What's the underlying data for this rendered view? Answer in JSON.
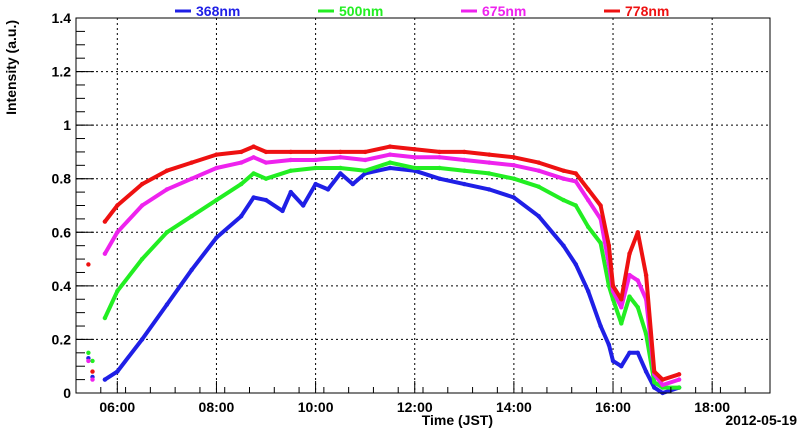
{
  "chart_data": {
    "type": "scatter",
    "title": "",
    "xlabel": "Time (JST)",
    "ylabel": "Intensity (a.u.)",
    "date_label": "2012-05-19",
    "xlim": [
      "05:10",
      "19:10"
    ],
    "ylim": [
      0,
      1.4
    ],
    "x_ticks": [
      "06:00",
      "08:00",
      "10:00",
      "12:00",
      "14:00",
      "16:00",
      "18:00"
    ],
    "y_ticks": [
      "0",
      "0.2",
      "0.4",
      "0.6",
      "0.8",
      "1",
      "1.2",
      "1.4"
    ],
    "grid": true,
    "legend_position": "top",
    "series": [
      {
        "name": "368nm",
        "color": "#1f1fe6",
        "points": [
          [
            "05:25",
            0.13
          ],
          [
            "05:30",
            0.06
          ],
          [
            "05:45",
            0.05
          ],
          [
            "06:00",
            0.08
          ],
          [
            "06:30",
            0.2
          ],
          [
            "07:00",
            0.33
          ],
          [
            "07:30",
            0.46
          ],
          [
            "08:00",
            0.58
          ],
          [
            "08:30",
            0.66
          ],
          [
            "08:45",
            0.73
          ],
          [
            "09:00",
            0.72
          ],
          [
            "09:20",
            0.68
          ],
          [
            "09:30",
            0.75
          ],
          [
            "09:45",
            0.7
          ],
          [
            "10:00",
            0.78
          ],
          [
            "10:15",
            0.76
          ],
          [
            "10:30",
            0.82
          ],
          [
            "10:45",
            0.78
          ],
          [
            "11:00",
            0.82
          ],
          [
            "11:30",
            0.84
          ],
          [
            "12:00",
            0.83
          ],
          [
            "12:30",
            0.8
          ],
          [
            "13:00",
            0.78
          ],
          [
            "13:30",
            0.76
          ],
          [
            "14:00",
            0.73
          ],
          [
            "14:30",
            0.66
          ],
          [
            "15:00",
            0.55
          ],
          [
            "15:15",
            0.48
          ],
          [
            "15:30",
            0.38
          ],
          [
            "15:45",
            0.25
          ],
          [
            "15:55",
            0.18
          ],
          [
            "16:00",
            0.12
          ],
          [
            "16:10",
            0.1
          ],
          [
            "16:20",
            0.15
          ],
          [
            "16:30",
            0.15
          ],
          [
            "16:40",
            0.08
          ],
          [
            "16:50",
            0.02
          ],
          [
            "17:00",
            0.0
          ],
          [
            "17:20",
            0.02
          ]
        ]
      },
      {
        "name": "500nm",
        "color": "#22ee22",
        "points": [
          [
            "05:25",
            0.15
          ],
          [
            "05:30",
            0.12
          ],
          [
            "05:45",
            0.28
          ],
          [
            "06:00",
            0.38
          ],
          [
            "06:30",
            0.5
          ],
          [
            "07:00",
            0.6
          ],
          [
            "07:30",
            0.66
          ],
          [
            "08:00",
            0.72
          ],
          [
            "08:30",
            0.78
          ],
          [
            "08:45",
            0.82
          ],
          [
            "09:00",
            0.8
          ],
          [
            "09:30",
            0.83
          ],
          [
            "10:00",
            0.84
          ],
          [
            "10:30",
            0.84
          ],
          [
            "11:00",
            0.83
          ],
          [
            "11:30",
            0.86
          ],
          [
            "12:00",
            0.84
          ],
          [
            "12:30",
            0.84
          ],
          [
            "13:00",
            0.83
          ],
          [
            "13:30",
            0.82
          ],
          [
            "14:00",
            0.8
          ],
          [
            "14:30",
            0.77
          ],
          [
            "15:00",
            0.72
          ],
          [
            "15:15",
            0.7
          ],
          [
            "15:30",
            0.62
          ],
          [
            "15:45",
            0.56
          ],
          [
            "15:55",
            0.4
          ],
          [
            "16:00",
            0.35
          ],
          [
            "16:10",
            0.26
          ],
          [
            "16:20",
            0.36
          ],
          [
            "16:30",
            0.32
          ],
          [
            "16:40",
            0.22
          ],
          [
            "16:50",
            0.04
          ],
          [
            "17:00",
            0.02
          ],
          [
            "17:20",
            0.02
          ]
        ]
      },
      {
        "name": "675nm",
        "color": "#ee22ee",
        "points": [
          [
            "05:25",
            0.12
          ],
          [
            "05:30",
            0.05
          ],
          [
            "05:45",
            0.52
          ],
          [
            "06:00",
            0.6
          ],
          [
            "06:30",
            0.7
          ],
          [
            "07:00",
            0.76
          ],
          [
            "07:30",
            0.8
          ],
          [
            "08:00",
            0.84
          ],
          [
            "08:30",
            0.86
          ],
          [
            "08:45",
            0.88
          ],
          [
            "09:00",
            0.86
          ],
          [
            "09:30",
            0.87
          ],
          [
            "10:00",
            0.87
          ],
          [
            "10:30",
            0.88
          ],
          [
            "11:00",
            0.87
          ],
          [
            "11:30",
            0.89
          ],
          [
            "12:00",
            0.88
          ],
          [
            "12:30",
            0.88
          ],
          [
            "13:00",
            0.87
          ],
          [
            "13:30",
            0.86
          ],
          [
            "14:00",
            0.85
          ],
          [
            "14:30",
            0.83
          ],
          [
            "15:00",
            0.8
          ],
          [
            "15:15",
            0.79
          ],
          [
            "15:30",
            0.72
          ],
          [
            "15:45",
            0.65
          ],
          [
            "15:55",
            0.48
          ],
          [
            "16:00",
            0.38
          ],
          [
            "16:10",
            0.32
          ],
          [
            "16:20",
            0.44
          ],
          [
            "16:30",
            0.42
          ],
          [
            "16:40",
            0.35
          ],
          [
            "16:50",
            0.07
          ],
          [
            "17:00",
            0.03
          ],
          [
            "17:20",
            0.05
          ]
        ]
      },
      {
        "name": "778nm",
        "color": "#ee1111",
        "points": [
          [
            "05:25",
            0.48
          ],
          [
            "05:30",
            0.08
          ],
          [
            "05:45",
            0.64
          ],
          [
            "06:00",
            0.7
          ],
          [
            "06:30",
            0.78
          ],
          [
            "07:00",
            0.83
          ],
          [
            "07:30",
            0.86
          ],
          [
            "08:00",
            0.89
          ],
          [
            "08:30",
            0.9
          ],
          [
            "08:45",
            0.92
          ],
          [
            "09:00",
            0.9
          ],
          [
            "09:30",
            0.9
          ],
          [
            "10:00",
            0.9
          ],
          [
            "10:30",
            0.9
          ],
          [
            "11:00",
            0.9
          ],
          [
            "11:30",
            0.92
          ],
          [
            "12:00",
            0.91
          ],
          [
            "12:30",
            0.9
          ],
          [
            "13:00",
            0.9
          ],
          [
            "13:30",
            0.89
          ],
          [
            "14:00",
            0.88
          ],
          [
            "14:30",
            0.86
          ],
          [
            "15:00",
            0.83
          ],
          [
            "15:15",
            0.82
          ],
          [
            "15:30",
            0.76
          ],
          [
            "15:45",
            0.7
          ],
          [
            "15:55",
            0.55
          ],
          [
            "16:00",
            0.4
          ],
          [
            "16:10",
            0.35
          ],
          [
            "16:20",
            0.52
          ],
          [
            "16:30",
            0.6
          ],
          [
            "16:40",
            0.44
          ],
          [
            "16:50",
            0.08
          ],
          [
            "17:00",
            0.05
          ],
          [
            "17:20",
            0.07
          ]
        ]
      }
    ]
  }
}
